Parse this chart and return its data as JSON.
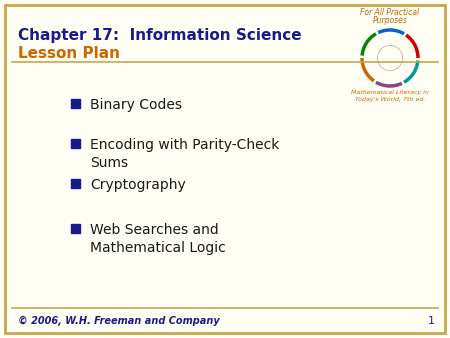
{
  "title_line1": "Chapter 17:  Information Science",
  "title_line2": "Lesson Plan",
  "title_color": "#1a1a8c",
  "subtitle_color": "#cc6600",
  "background_color": "#fffef5",
  "border_color": "#c8a84b",
  "bullet_color": "#1a1a8c",
  "bullet_text_color": "#1a1a1a",
  "footer_text": "© 2006, W.H. Freeman and Company",
  "footer_color": "#1a1a8c",
  "page_number": "1",
  "top_right_line1": "For All Practical",
  "top_right_line2": "Purposes",
  "top_right_color": "#cc6600",
  "logo_caption1": "Mathematical Literacy in",
  "logo_caption2": "Today's World, 7th ed.",
  "bullet_items": [
    "Binary Codes",
    "Encoding with Parity-Check\nSums",
    "Cryptography",
    "Web Searches and\nMathematical Logic"
  ],
  "figsize": [
    4.5,
    3.38
  ],
  "dpi": 100
}
